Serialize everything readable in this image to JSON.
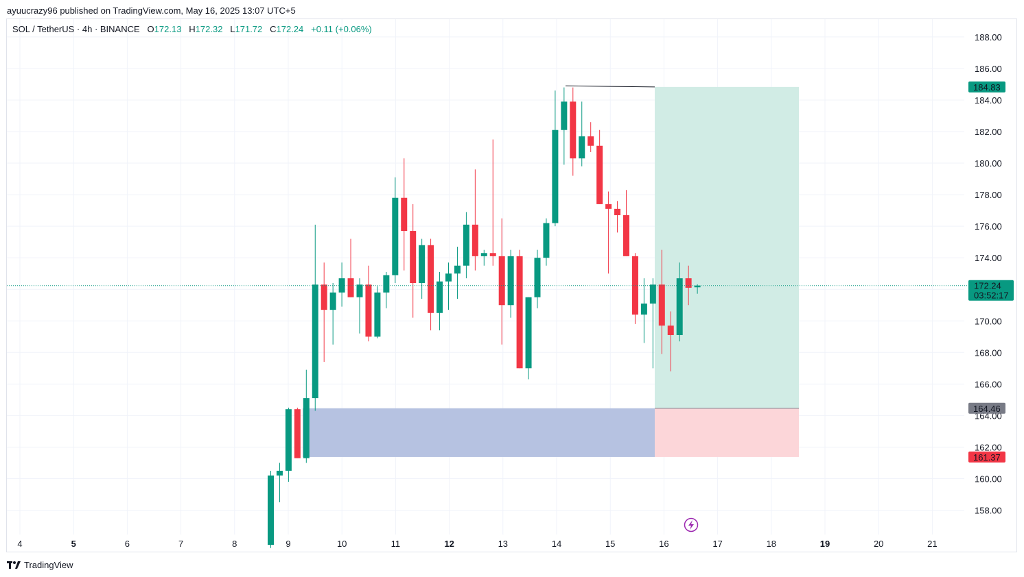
{
  "header": {
    "published": "ayuucrazy96 published on TradingView.com, May 16, 2025 13:07 UTC+5"
  },
  "legend": {
    "symbol": "SOL / TetherUS · 4h · BINANCE",
    "o_label": "O",
    "o_value": "172.13",
    "h_label": "H",
    "h_value": "172.32",
    "l_label": "L",
    "l_value": "171.72",
    "c_label": "C",
    "c_value": "172.24",
    "change": "+0.11 (+0.06%)"
  },
  "footer": {
    "brand": "TradingView",
    "logo_icon": "tradingview-logo-icon"
  },
  "colors": {
    "up": "#089981",
    "down": "#f23645",
    "grid": "#f0f3fa",
    "target": "#d1ece5",
    "stop": "#fcd6d9",
    "zone": "#b6c2e1"
  },
  "chart_data": {
    "type": "candlestick",
    "symbol": "SOL / TetherUS",
    "interval": "4h",
    "exchange": "BINANCE",
    "ylim": [
      156,
      189
    ],
    "y_ticks": [
      "158.00",
      "160.00",
      "162.00",
      "164.00",
      "166.00",
      "168.00",
      "170.00",
      "172.00",
      "174.00",
      "176.00",
      "178.00",
      "180.00",
      "182.00",
      "184.00",
      "186.00",
      "188.00"
    ],
    "x_ticks": [
      {
        "label": "4",
        "day": 4,
        "bold": false
      },
      {
        "label": "5",
        "day": 5,
        "bold": true
      },
      {
        "label": "6",
        "day": 6,
        "bold": false
      },
      {
        "label": "7",
        "day": 7,
        "bold": false
      },
      {
        "label": "8",
        "day": 8,
        "bold": false
      },
      {
        "label": "9",
        "day": 9,
        "bold": false
      },
      {
        "label": "10",
        "day": 10,
        "bold": false
      },
      {
        "label": "11",
        "day": 11,
        "bold": false
      },
      {
        "label": "12",
        "day": 12,
        "bold": true
      },
      {
        "label": "13",
        "day": 13,
        "bold": false
      },
      {
        "label": "14",
        "day": 14,
        "bold": false
      },
      {
        "label": "15",
        "day": 15,
        "bold": false
      },
      {
        "label": "16",
        "day": 16,
        "bold": false
      },
      {
        "label": "17",
        "day": 17,
        "bold": false
      },
      {
        "label": "18",
        "day": 18,
        "bold": false
      },
      {
        "label": "19",
        "day": 19,
        "bold": true
      },
      {
        "label": "20",
        "day": 20,
        "bold": false
      },
      {
        "label": "21",
        "day": 21,
        "bold": false
      }
    ],
    "candles": [
      {
        "o": 155.8,
        "h": 160.5,
        "l": 155.6,
        "c": 160.2
      },
      {
        "o": 160.2,
        "h": 161.0,
        "l": 158.5,
        "c": 160.5
      },
      {
        "o": 160.5,
        "h": 164.5,
        "l": 159.8,
        "c": 164.4
      },
      {
        "o": 164.4,
        "h": 164.5,
        "l": 161.3,
        "c": 161.3
      },
      {
        "o": 161.3,
        "h": 166.9,
        "l": 161.0,
        "c": 165.1
      },
      {
        "o": 165.1,
        "h": 176.1,
        "l": 164.3,
        "c": 172.3
      },
      {
        "o": 172.3,
        "h": 173.7,
        "l": 167.4,
        "c": 170.7
      },
      {
        "o": 170.7,
        "h": 172.4,
        "l": 168.5,
        "c": 171.8
      },
      {
        "o": 171.8,
        "h": 173.7,
        "l": 170.9,
        "c": 172.7
      },
      {
        "o": 172.7,
        "h": 175.2,
        "l": 171.5,
        "c": 171.5
      },
      {
        "o": 171.5,
        "h": 172.7,
        "l": 169.2,
        "c": 172.3
      },
      {
        "o": 172.3,
        "h": 173.5,
        "l": 168.7,
        "c": 169.0
      },
      {
        "o": 169.0,
        "h": 172.2,
        "l": 168.9,
        "c": 171.8
      },
      {
        "o": 171.8,
        "h": 173.1,
        "l": 170.8,
        "c": 172.9
      },
      {
        "o": 172.9,
        "h": 179.1,
        "l": 172.4,
        "c": 177.8
      },
      {
        "o": 177.8,
        "h": 180.3,
        "l": 173.2,
        "c": 175.7
      },
      {
        "o": 175.7,
        "h": 177.4,
        "l": 170.2,
        "c": 172.4
      },
      {
        "o": 172.4,
        "h": 175.2,
        "l": 171.4,
        "c": 174.8
      },
      {
        "o": 174.8,
        "h": 175.2,
        "l": 169.4,
        "c": 170.5
      },
      {
        "o": 170.5,
        "h": 173.1,
        "l": 169.4,
        "c": 172.5
      },
      {
        "o": 172.5,
        "h": 173.7,
        "l": 170.7,
        "c": 173.0
      },
      {
        "o": 173.0,
        "h": 174.7,
        "l": 171.4,
        "c": 173.5
      },
      {
        "o": 173.5,
        "h": 176.9,
        "l": 172.7,
        "c": 176.1
      },
      {
        "o": 176.1,
        "h": 179.6,
        "l": 173.2,
        "c": 174.1
      },
      {
        "o": 174.1,
        "h": 174.5,
        "l": 173.5,
        "c": 174.3
      },
      {
        "o": 174.3,
        "h": 181.5,
        "l": 173.5,
        "c": 174.1
      },
      {
        "o": 174.1,
        "h": 176.5,
        "l": 168.5,
        "c": 171.0
      },
      {
        "o": 171.0,
        "h": 174.5,
        "l": 170.2,
        "c": 174.1
      },
      {
        "o": 174.1,
        "h": 174.5,
        "l": 167.0,
        "c": 167.0
      },
      {
        "o": 167.0,
        "h": 171.5,
        "l": 166.3,
        "c": 171.5
      },
      {
        "o": 171.5,
        "h": 174.5,
        "l": 170.8,
        "c": 174.0
      },
      {
        "o": 174.0,
        "h": 176.5,
        "l": 173.5,
        "c": 176.2
      },
      {
        "o": 176.2,
        "h": 184.6,
        "l": 176.0,
        "c": 182.1
      },
      {
        "o": 182.1,
        "h": 184.8,
        "l": 179.9,
        "c": 183.9
      },
      {
        "o": 183.9,
        "h": 184.8,
        "l": 179.2,
        "c": 180.3
      },
      {
        "o": 180.3,
        "h": 183.9,
        "l": 179.8,
        "c": 181.7
      },
      {
        "o": 181.7,
        "h": 182.6,
        "l": 180.7,
        "c": 181.1
      },
      {
        "o": 181.1,
        "h": 182.1,
        "l": 177.4,
        "c": 177.4
      },
      {
        "o": 177.4,
        "h": 178.2,
        "l": 173.0,
        "c": 177.1
      },
      {
        "o": 177.1,
        "h": 177.6,
        "l": 175.6,
        "c": 176.7
      },
      {
        "o": 176.7,
        "h": 178.3,
        "l": 174.1,
        "c": 174.1
      },
      {
        "o": 174.1,
        "h": 174.3,
        "l": 169.8,
        "c": 170.4
      },
      {
        "o": 170.4,
        "h": 172.7,
        "l": 168.6,
        "c": 171.1
      },
      {
        "o": 171.1,
        "h": 172.7,
        "l": 167.0,
        "c": 172.3
      },
      {
        "o": 172.3,
        "h": 174.5,
        "l": 167.9,
        "c": 169.7
      },
      {
        "o": 169.7,
        "h": 170.6,
        "l": 166.8,
        "c": 169.1
      },
      {
        "o": 169.1,
        "h": 173.7,
        "l": 168.7,
        "c": 172.7
      },
      {
        "o": 172.7,
        "h": 173.5,
        "l": 171.0,
        "c": 172.1
      },
      {
        "o": 172.13,
        "h": 172.32,
        "l": 171.72,
        "c": 172.24
      }
    ],
    "last_price": {
      "value": "172.24",
      "countdown": "03:52:17"
    },
    "position": {
      "type": "long",
      "target": "184.83",
      "entry": "164.46",
      "stop": "161.37"
    },
    "demand_zone": {
      "top": 164.46,
      "bottom": 161.37
    },
    "lightning_icon": "lightning-icon"
  }
}
